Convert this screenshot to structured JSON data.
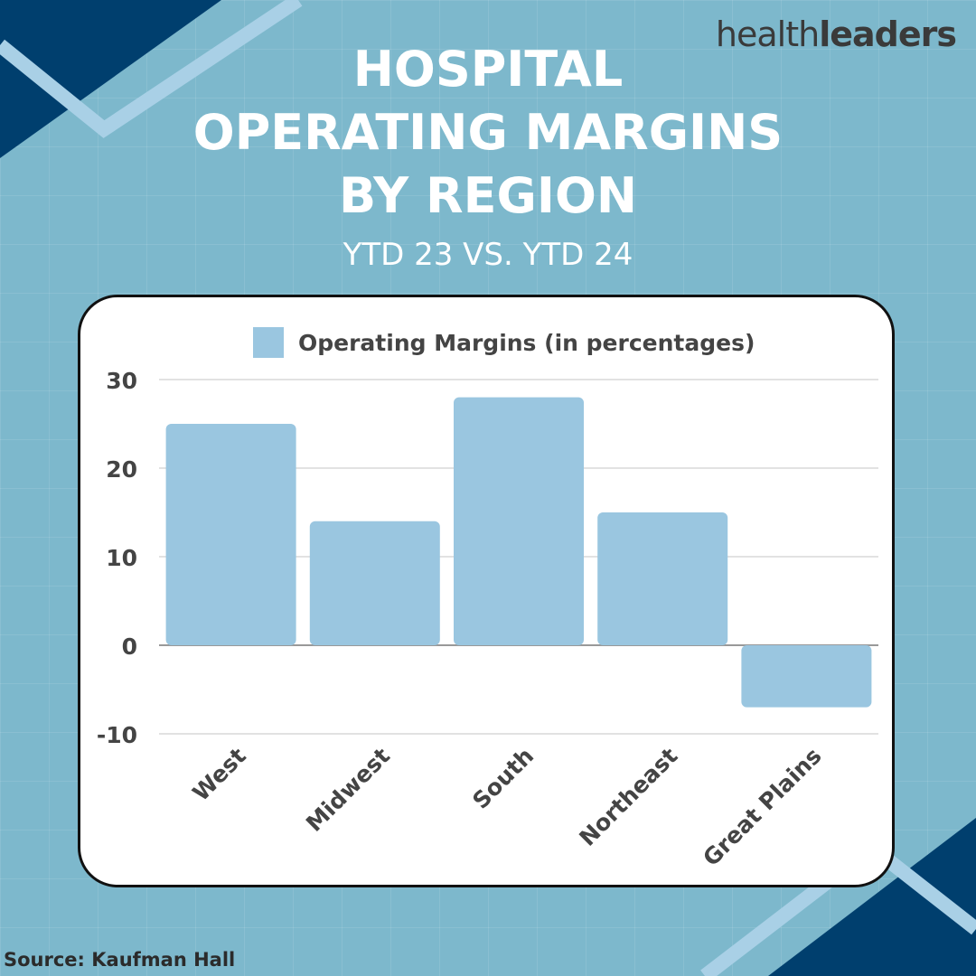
{
  "brand": {
    "logo_light": "health",
    "logo_bold": "leaders"
  },
  "colors": {
    "background": "#7db8cc",
    "navy": "#003f6e",
    "bar": "#9ac6e0",
    "card": "#ffffff"
  },
  "title_lines": [
    "HOSPITAL",
    "OPERATING MARGINS",
    "BY REGION"
  ],
  "subtitle": "YTD 23 VS. YTD 24",
  "source": "Source: Kaufman Hall",
  "chart_data": {
    "type": "bar",
    "categories": [
      "West",
      "Midwest",
      "South",
      "Northeast",
      "Great Plains"
    ],
    "series": [
      {
        "name": "Operating Margins (in percentages)",
        "values": [
          25,
          14,
          28,
          15,
          -7
        ]
      }
    ],
    "yticks": [
      30,
      20,
      10,
      0,
      -10
    ],
    "ylim": [
      -10,
      30
    ],
    "grid": true,
    "legend_position": "top"
  }
}
